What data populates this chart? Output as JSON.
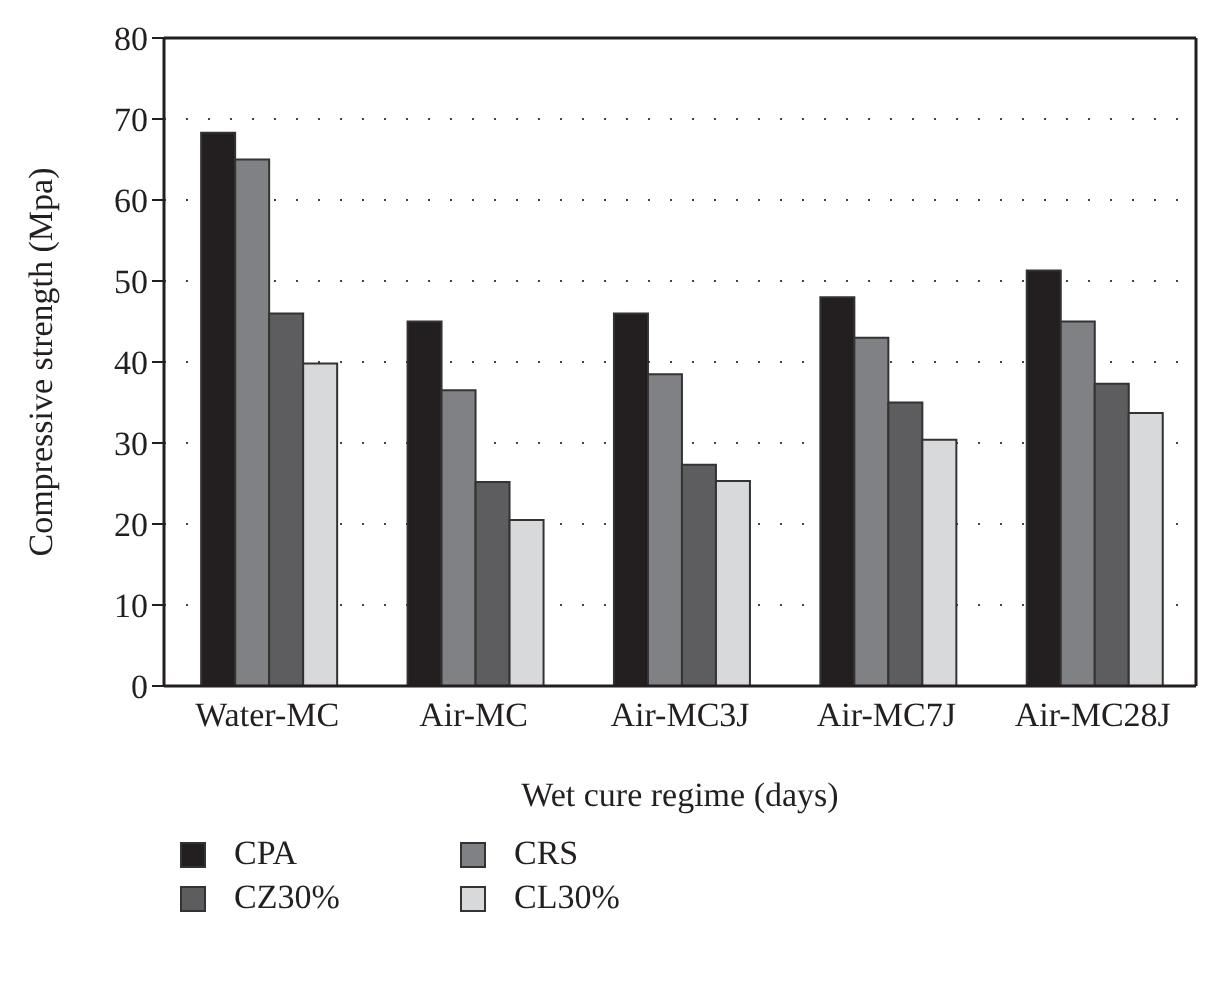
{
  "chart_data": {
    "type": "bar",
    "xlabel": "Wet cure regime (days)",
    "ylabel": "Compressive strength (Mpa)",
    "categories": [
      "Water-MC",
      "Air-MC",
      "Air-MC3J",
      "Air-MC7J",
      "Air-MC28J"
    ],
    "series": [
      {
        "name": "CPA",
        "color": "#231f20",
        "values": [
          68.3,
          45,
          46,
          48,
          51.3
        ]
      },
      {
        "name": "CRS",
        "color": "#808184",
        "values": [
          65,
          36.5,
          38.5,
          43,
          45
        ]
      },
      {
        "name": "CZ30%",
        "color": "#5d5d5f",
        "values": [
          46,
          25.2,
          27.3,
          35,
          37.3
        ]
      },
      {
        "name": "CL30%",
        "color": "#d8d9da",
        "values": [
          39.8,
          20.5,
          25.3,
          30.4,
          33.7
        ]
      }
    ],
    "ylim": [
      0,
      80
    ],
    "yticks": [
      0,
      10,
      20,
      30,
      40,
      50,
      60,
      70,
      80
    ],
    "grid": "y",
    "legend": "bottom left"
  }
}
